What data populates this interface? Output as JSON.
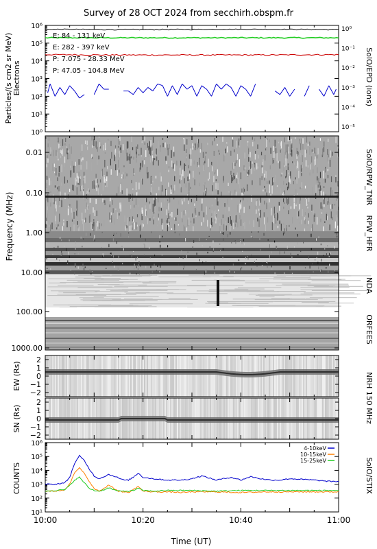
{
  "title": "Survey of 28 OCT 2024 from secchirh.obspm.fr",
  "xlabel": "Time (UT)",
  "chart_data": [
    {
      "panel": "epd",
      "type": "line",
      "ylabel": "Particles/(s cm2 sr MeV)",
      "ylabel2": "Electrons",
      "right_label": "SolO/EPD  (ions)",
      "y_ticks_left": [
        "10⁰",
        "10¹",
        "10²",
        "10³",
        "10⁴",
        "10⁵",
        "10⁶"
      ],
      "y_ticks_right": [
        "10⁻⁵",
        "10⁻⁴",
        "10⁻³",
        "10⁻²",
        "10⁻¹",
        "10⁰"
      ],
      "ylim_log": [
        0,
        6
      ],
      "legend": [
        {
          "text": "E: 84 - 131 keV",
          "color": "#22cc22"
        },
        {
          "text": "E: 282 - 397 keV",
          "color": "#cc0000"
        },
        {
          "text": "P: 7.075 - 28.33 MeV",
          "color": "#000000"
        },
        {
          "text": "P: 47.05 - 104.8 MeV",
          "color": "#0000cc"
        }
      ],
      "series": [
        {
          "name": "E: 84 - 131 keV",
          "color": "#22cc22",
          "x": [
            0,
            15,
            30,
            45,
            60
          ],
          "log10_values": [
            5.3,
            5.3,
            5.3,
            5.3,
            5.3
          ]
        },
        {
          "name": "E: 282 - 397 keV",
          "color": "#cc0000",
          "x": [
            0,
            15,
            30,
            45,
            60
          ],
          "log10_values": [
            4.35,
            4.33,
            4.33,
            4.33,
            4.35
          ]
        },
        {
          "name": "P: 7.075 - 28.33 MeV",
          "color": "#000000",
          "x": [
            0,
            15,
            30,
            45,
            60
          ],
          "log10_values": [
            5.78,
            5.76,
            5.77,
            5.78,
            5.76
          ]
        },
        {
          "name": "P: 47.05 - 104.8 MeV",
          "color": "#0000cc",
          "x": [
            0.5,
            1,
            2,
            3,
            4,
            5,
            6,
            7,
            8,
            10,
            11,
            12,
            13,
            16,
            17,
            18,
            19,
            20,
            21,
            22,
            23,
            24,
            25,
            26,
            27,
            28,
            29,
            30,
            31,
            32,
            33,
            34,
            35,
            36,
            37,
            38,
            39,
            40,
            41,
            42,
            43,
            47,
            48,
            49,
            50,
            51,
            53,
            54,
            56,
            57,
            58,
            59,
            59.5
          ],
          "log10_values": [
            2.2,
            2.7,
            2.0,
            2.5,
            2.1,
            2.6,
            2.3,
            1.9,
            2.1,
            2.1,
            2.7,
            2.4,
            2.4,
            2.3,
            2.3,
            2.1,
            2.5,
            2.2,
            2.5,
            2.3,
            2.7,
            2.6,
            2.0,
            2.6,
            2.1,
            2.7,
            2.4,
            2.6,
            2.0,
            2.6,
            2.4,
            2.0,
            2.7,
            2.4,
            2.7,
            2.5,
            2.0,
            2.6,
            2.4,
            2.0,
            2.7,
            2.3,
            2.1,
            2.5,
            2.0,
            2.4,
            2.0,
            2.6,
            2.4,
            2.0,
            2.6,
            2.1,
            2.4
          ]
        }
      ]
    },
    {
      "panel": "radio",
      "type": "heatmap",
      "ylabel": "Frequency (MHz)",
      "y_ticks": [
        "0.01",
        "0.10",
        "1.00",
        "10.00",
        "100.00",
        "1000.00"
      ],
      "instruments": [
        "SolO/RPW_TNR",
        "RPW_HFR",
        "NDA",
        "ORFEES"
      ]
    },
    {
      "panel": "nrh_ew",
      "type": "heatmap",
      "ylabel": "EW (Rs)",
      "y_ticks": [
        "2",
        "1",
        "0",
        "−1",
        "−2"
      ],
      "right_label": "NRH 150 MHz"
    },
    {
      "panel": "nrh_sn",
      "type": "heatmap",
      "ylabel": "SN (Rs)",
      "y_ticks": [
        "2",
        "1",
        "0",
        "−1",
        "−2"
      ]
    },
    {
      "panel": "stix",
      "type": "line",
      "ylabel": "COUNTS",
      "right_label": "SolO/STIX",
      "y_ticks": [
        "10¹",
        "10²",
        "10³",
        "10⁴",
        "10⁵",
        "10⁶"
      ],
      "ylim_log": [
        1,
        6
      ],
      "x_ticks": [
        "10:00",
        "10:20",
        "10:40",
        "11:00"
      ],
      "series": [
        {
          "name": "4-10keV",
          "color": "#0000cc",
          "x": [
            0,
            2,
            4,
            5,
            6,
            7,
            8,
            9,
            10,
            11,
            12,
            13,
            14,
            15,
            16,
            17,
            18,
            19,
            20,
            22,
            25,
            28,
            30,
            32,
            35,
            38,
            40,
            42,
            44,
            46,
            48,
            50,
            55,
            58,
            60
          ],
          "log10_values": [
            3.0,
            3.0,
            3.1,
            3.5,
            4.5,
            5.05,
            4.7,
            4.1,
            3.6,
            3.4,
            3.55,
            3.7,
            3.6,
            3.45,
            3.3,
            3.3,
            3.5,
            3.8,
            3.5,
            3.4,
            3.3,
            3.3,
            3.4,
            3.6,
            3.3,
            3.5,
            3.3,
            3.55,
            3.4,
            3.3,
            3.3,
            3.4,
            3.3,
            3.2,
            3.2
          ]
        },
        {
          "name": "10-15keV",
          "color": "#ff8000",
          "x": [
            0,
            2,
            4,
            5,
            6,
            7,
            8,
            9,
            10,
            11,
            12,
            13,
            14,
            15,
            16,
            17,
            18,
            19,
            20,
            22,
            25,
            28,
            30,
            35,
            40,
            45,
            50,
            55,
            60
          ],
          "log10_values": [
            2.5,
            2.5,
            2.6,
            3.0,
            3.8,
            4.2,
            3.8,
            3.2,
            2.7,
            2.5,
            2.7,
            2.95,
            2.7,
            2.5,
            2.45,
            2.4,
            2.6,
            2.85,
            2.5,
            2.45,
            2.45,
            2.4,
            2.45,
            2.45,
            2.4,
            2.45,
            2.45,
            2.45,
            2.45
          ]
        },
        {
          "name": "15-25keV",
          "color": "#22cc22",
          "x": [
            0,
            2,
            4,
            5,
            6,
            7,
            8,
            9,
            10,
            11,
            12,
            13,
            14,
            15,
            16,
            17,
            18,
            19,
            20,
            22,
            25,
            28,
            30,
            35,
            40,
            45,
            50,
            55,
            60
          ],
          "log10_values": [
            2.5,
            2.55,
            2.6,
            2.9,
            3.3,
            3.5,
            3.1,
            2.7,
            2.55,
            2.5,
            2.6,
            2.75,
            2.6,
            2.5,
            2.5,
            2.5,
            2.55,
            2.7,
            2.55,
            2.5,
            2.55,
            2.55,
            2.55,
            2.5,
            2.55,
            2.55,
            2.55,
            2.55,
            2.55
          ]
        }
      ]
    }
  ]
}
